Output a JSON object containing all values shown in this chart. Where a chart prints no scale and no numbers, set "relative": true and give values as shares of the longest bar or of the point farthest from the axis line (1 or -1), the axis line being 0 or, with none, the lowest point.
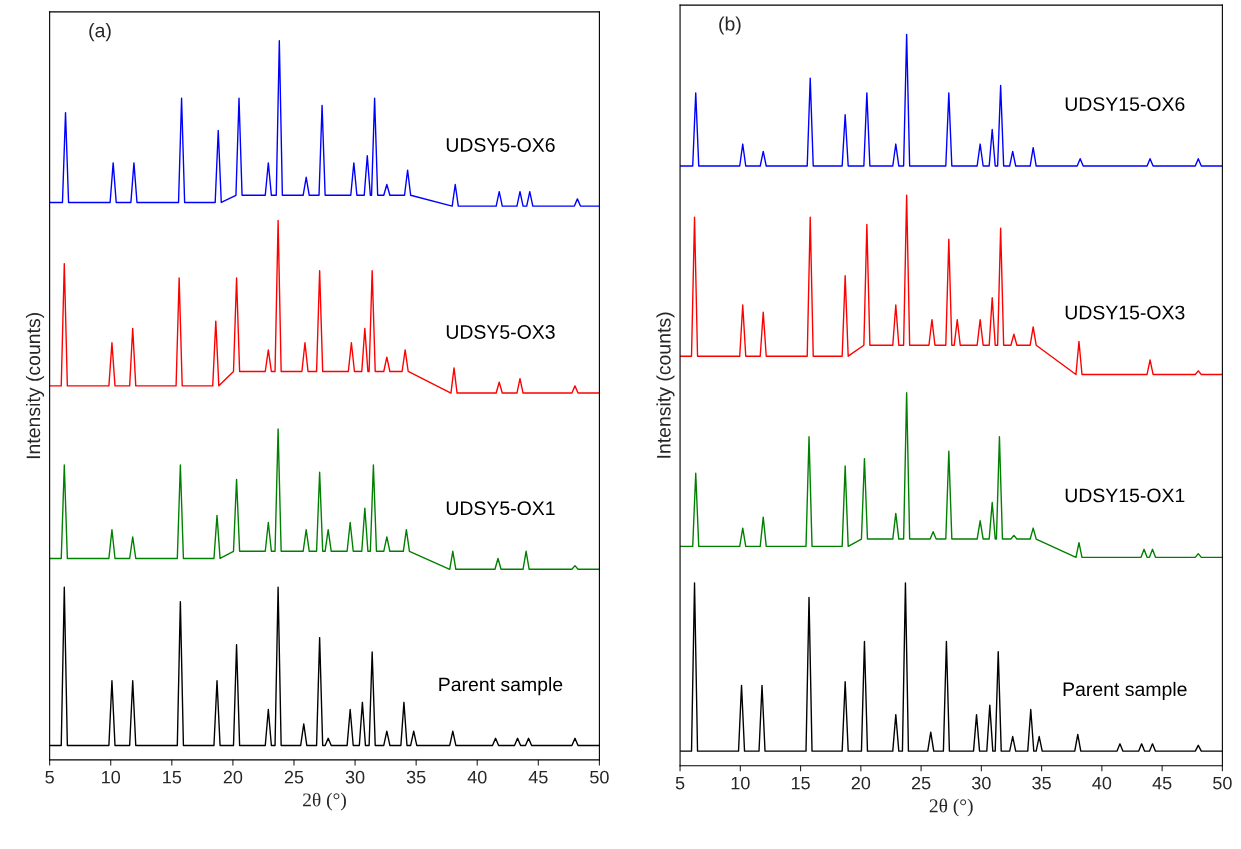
{
  "chart_data": [
    {
      "type": "line",
      "title": "(a)",
      "xlabel": "2θ (°)",
      "ylabel": "Intensity (counts)",
      "relative": true,
      "xlim": [
        5,
        50
      ],
      "xticks": [
        5,
        10,
        15,
        20,
        25,
        30,
        35,
        40,
        45,
        50
      ],
      "legend": false,
      "grid": false,
      "series": [
        {
          "name": "Parent sample",
          "color": "#000000",
          "x": [
            5,
            5.95,
            6.2,
            6.45,
            9.85,
            10.1,
            10.35,
            11.55,
            11.8,
            12.05,
            15.45,
            15.7,
            15.95,
            18.45,
            18.7,
            18.95,
            20.05,
            20.3,
            20.55,
            22.65,
            22.9,
            23.15,
            23.45,
            23.7,
            23.95,
            25.55,
            25.8,
            26.05,
            26.85,
            27.1,
            27.35,
            27.55,
            27.8,
            28.05,
            29.35,
            29.6,
            29.85,
            30.35,
            30.6,
            30.85,
            31.15,
            31.4,
            31.65,
            32.35,
            32.6,
            32.85,
            33.75,
            34.0,
            34.25,
            34.55,
            34.8,
            35.05,
            37.75,
            38.0,
            38.25,
            41.25,
            41.5,
            41.75,
            43.05,
            43.3,
            43.55,
            43.95,
            44.2,
            44.45,
            47.75,
            48.0,
            48.25,
            50
          ],
          "values": [
            0.02,
            0.02,
            0.24,
            0.02,
            0.02,
            0.11,
            0.02,
            0.02,
            0.11,
            0.02,
            0.02,
            0.22,
            0.02,
            0.02,
            0.11,
            0.02,
            0.02,
            0.16,
            0.02,
            0.02,
            0.07,
            0.02,
            0.02,
            0.24,
            0.02,
            0.02,
            0.05,
            0.02,
            0.02,
            0.17,
            0.02,
            0.02,
            0.03,
            0.02,
            0.02,
            0.07,
            0.02,
            0.02,
            0.08,
            0.02,
            0.02,
            0.15,
            0.02,
            0.02,
            0.04,
            0.02,
            0.02,
            0.08,
            0.02,
            0.02,
            0.04,
            0.02,
            0.02,
            0.04,
            0.02,
            0.02,
            0.03,
            0.02,
            0.02,
            0.03,
            0.02,
            0.02,
            0.03,
            0.02,
            0.02,
            0.03,
            0.02,
            0.02
          ]
        },
        {
          "name": "UDSY5-OX1",
          "color": "#008000",
          "x": [
            5,
            5.95,
            6.2,
            6.45,
            9.85,
            10.1,
            10.35,
            11.55,
            11.8,
            12.05,
            15.45,
            15.7,
            15.95,
            18.45,
            18.7,
            18.95,
            20.05,
            20.3,
            20.55,
            22.65,
            22.9,
            23.15,
            23.45,
            23.7,
            23.95,
            25.75,
            26.0,
            26.25,
            26.85,
            27.1,
            27.35,
            27.55,
            27.8,
            28.05,
            29.35,
            29.6,
            29.85,
            30.55,
            30.8,
            31.05,
            31.25,
            31.5,
            31.75,
            32.35,
            32.6,
            32.85,
            33.95,
            34.2,
            34.45,
            37.75,
            38.0,
            38.25,
            41.45,
            41.7,
            41.95,
            43.75,
            44.0,
            44.25,
            47.75,
            48.0,
            48.25,
            50
          ],
          "values": [
            0.28,
            0.28,
            0.41,
            0.28,
            0.28,
            0.32,
            0.28,
            0.28,
            0.31,
            0.28,
            0.28,
            0.41,
            0.28,
            0.28,
            0.34,
            0.28,
            0.29,
            0.39,
            0.29,
            0.29,
            0.33,
            0.29,
            0.29,
            0.46,
            0.29,
            0.29,
            0.32,
            0.29,
            0.29,
            0.4,
            0.29,
            0.29,
            0.32,
            0.29,
            0.29,
            0.33,
            0.29,
            0.29,
            0.35,
            0.29,
            0.29,
            0.41,
            0.29,
            0.29,
            0.31,
            0.29,
            0.29,
            0.32,
            0.29,
            0.265,
            0.29,
            0.265,
            0.265,
            0.28,
            0.265,
            0.265,
            0.29,
            0.265,
            0.265,
            0.27,
            0.265,
            0.265
          ]
        },
        {
          "name": "UDSY5-OX3",
          "color": "#ff0000",
          "x": [
            5,
            5.95,
            6.2,
            6.45,
            9.85,
            10.1,
            10.35,
            11.55,
            11.8,
            12.05,
            15.35,
            15.6,
            15.85,
            18.35,
            18.6,
            18.85,
            20.05,
            20.3,
            20.55,
            22.65,
            22.9,
            23.15,
            23.45,
            23.7,
            23.95,
            25.65,
            25.9,
            26.15,
            26.85,
            27.1,
            27.35,
            29.45,
            29.7,
            29.95,
            30.55,
            30.8,
            31.05,
            31.15,
            31.4,
            31.65,
            32.35,
            32.6,
            32.85,
            33.85,
            34.1,
            34.35,
            37.85,
            38.1,
            38.35,
            41.55,
            41.8,
            42.05,
            43.25,
            43.5,
            43.75,
            47.75,
            48.0,
            48.25,
            50
          ],
          "values": [
            0.52,
            0.52,
            0.69,
            0.52,
            0.52,
            0.58,
            0.52,
            0.52,
            0.6,
            0.52,
            0.52,
            0.67,
            0.52,
            0.52,
            0.61,
            0.52,
            0.54,
            0.67,
            0.54,
            0.54,
            0.57,
            0.54,
            0.54,
            0.75,
            0.54,
            0.54,
            0.58,
            0.54,
            0.54,
            0.68,
            0.54,
            0.54,
            0.58,
            0.54,
            0.54,
            0.6,
            0.54,
            0.54,
            0.68,
            0.54,
            0.54,
            0.56,
            0.54,
            0.54,
            0.57,
            0.54,
            0.51,
            0.545,
            0.51,
            0.51,
            0.525,
            0.51,
            0.51,
            0.53,
            0.51,
            0.51,
            0.52,
            0.51,
            0.51
          ]
        },
        {
          "name": "UDSY5-OX6",
          "color": "#0000ff",
          "x": [
            5,
            6.05,
            6.3,
            6.55,
            9.95,
            10.2,
            10.45,
            11.65,
            11.9,
            12.15,
            15.55,
            15.8,
            16.05,
            18.55,
            18.8,
            19.05,
            20.25,
            20.5,
            20.75,
            22.65,
            22.9,
            23.15,
            23.55,
            23.8,
            24.05,
            25.75,
            26.0,
            26.25,
            27.05,
            27.3,
            27.55,
            29.65,
            29.9,
            30.15,
            30.75,
            31.0,
            31.25,
            31.35,
            31.6,
            31.85,
            32.35,
            32.6,
            32.85,
            34.05,
            34.3,
            34.55,
            37.95,
            38.2,
            38.45,
            41.55,
            41.8,
            42.05,
            43.25,
            43.5,
            43.75,
            44.05,
            44.3,
            44.55,
            47.95,
            48.2,
            48.45,
            50
          ],
          "values": [
            0.775,
            0.775,
            0.9,
            0.775,
            0.775,
            0.83,
            0.775,
            0.775,
            0.83,
            0.775,
            0.775,
            0.92,
            0.775,
            0.775,
            0.875,
            0.775,
            0.785,
            0.92,
            0.785,
            0.785,
            0.83,
            0.785,
            0.785,
            1.0,
            0.785,
            0.785,
            0.81,
            0.785,
            0.785,
            0.91,
            0.785,
            0.785,
            0.83,
            0.785,
            0.785,
            0.84,
            0.785,
            0.785,
            0.92,
            0.785,
            0.785,
            0.8,
            0.785,
            0.785,
            0.82,
            0.785,
            0.77,
            0.8,
            0.77,
            0.77,
            0.79,
            0.77,
            0.77,
            0.79,
            0.77,
            0.77,
            0.79,
            0.77,
            0.77,
            0.78,
            0.77,
            0.77
          ]
        }
      ]
    },
    {
      "type": "line",
      "title": "(b)",
      "xlabel": "2θ (°)",
      "ylabel": "Intensity (counts)",
      "relative": true,
      "xlim": [
        5,
        50
      ],
      "xticks": [
        5,
        10,
        15,
        20,
        25,
        30,
        35,
        40,
        45,
        50
      ],
      "legend": false,
      "grid": false,
      "series": [
        {
          "name": "Parent sample",
          "color": "#000000",
          "x": [
            5,
            5.95,
            6.2,
            6.45,
            9.85,
            10.1,
            10.35,
            11.55,
            11.8,
            12.05,
            15.45,
            15.7,
            15.95,
            18.45,
            18.7,
            18.95,
            20.05,
            20.3,
            20.55,
            22.65,
            22.9,
            23.15,
            23.45,
            23.7,
            23.95,
            25.55,
            25.8,
            26.05,
            26.85,
            27.1,
            27.35,
            29.35,
            29.6,
            29.85,
            30.45,
            30.7,
            30.95,
            31.15,
            31.4,
            31.65,
            32.35,
            32.6,
            32.85,
            33.85,
            34.1,
            34.35,
            34.55,
            34.8,
            35.05,
            37.75,
            38.0,
            38.25,
            41.25,
            41.5,
            41.75,
            43.05,
            43.3,
            43.55,
            43.95,
            44.2,
            44.45,
            47.75,
            48.0,
            48.25,
            50
          ],
          "values": [
            0.02,
            0.02,
            0.25,
            0.02,
            0.02,
            0.11,
            0.02,
            0.02,
            0.11,
            0.02,
            0.02,
            0.23,
            0.02,
            0.02,
            0.115,
            0.02,
            0.02,
            0.17,
            0.02,
            0.02,
            0.07,
            0.02,
            0.02,
            0.25,
            0.02,
            0.02,
            0.046,
            0.02,
            0.02,
            0.17,
            0.02,
            0.02,
            0.07,
            0.02,
            0.02,
            0.083,
            0.02,
            0.02,
            0.156,
            0.02,
            0.02,
            0.04,
            0.02,
            0.02,
            0.077,
            0.02,
            0.02,
            0.04,
            0.02,
            0.02,
            0.043,
            0.02,
            0.02,
            0.03,
            0.02,
            0.02,
            0.03,
            0.02,
            0.02,
            0.03,
            0.02,
            0.02,
            0.028,
            0.02,
            0.02
          ]
        },
        {
          "name": "UDSY15-OX1",
          "color": "#008000",
          "x": [
            5,
            6.05,
            6.3,
            6.55,
            9.95,
            10.2,
            10.45,
            11.65,
            11.9,
            12.15,
            15.45,
            15.7,
            15.95,
            18.45,
            18.7,
            18.95,
            20.05,
            20.3,
            20.55,
            22.65,
            22.9,
            23.15,
            23.55,
            23.8,
            24.05,
            25.75,
            26.0,
            26.25,
            27.05,
            27.3,
            27.55,
            29.65,
            29.9,
            30.15,
            30.65,
            30.9,
            31.15,
            31.25,
            31.5,
            31.75,
            32.45,
            32.7,
            32.95,
            34.05,
            34.3,
            34.55,
            37.85,
            38.1,
            38.35,
            43.25,
            43.5,
            43.75,
            43.95,
            44.2,
            44.45,
            47.75,
            48.0,
            48.25,
            50
          ],
          "values": [
            0.3,
            0.3,
            0.4,
            0.3,
            0.3,
            0.325,
            0.3,
            0.3,
            0.34,
            0.3,
            0.3,
            0.45,
            0.3,
            0.3,
            0.41,
            0.3,
            0.31,
            0.42,
            0.31,
            0.31,
            0.345,
            0.31,
            0.31,
            0.51,
            0.31,
            0.31,
            0.32,
            0.31,
            0.31,
            0.43,
            0.31,
            0.31,
            0.335,
            0.31,
            0.31,
            0.36,
            0.31,
            0.31,
            0.45,
            0.31,
            0.31,
            0.315,
            0.31,
            0.31,
            0.325,
            0.31,
            0.285,
            0.305,
            0.285,
            0.285,
            0.296,
            0.285,
            0.285,
            0.296,
            0.285,
            0.285,
            0.29,
            0.285,
            0.285
          ]
        },
        {
          "name": "UDSY15-OX3",
          "color": "#ff0000",
          "x": [
            5,
            5.95,
            6.2,
            6.45,
            9.95,
            10.2,
            10.45,
            11.65,
            11.9,
            12.15,
            15.55,
            15.8,
            16.05,
            18.45,
            18.7,
            18.95,
            20.25,
            20.5,
            20.75,
            22.65,
            22.9,
            23.15,
            23.55,
            23.8,
            24.05,
            25.65,
            25.9,
            26.15,
            27.05,
            27.3,
            27.55,
            27.75,
            28.0,
            28.25,
            29.65,
            29.9,
            30.15,
            30.65,
            30.9,
            31.15,
            31.35,
            31.6,
            31.85,
            32.45,
            32.7,
            32.95,
            34.05,
            34.3,
            34.55,
            37.85,
            38.1,
            38.35,
            43.75,
            44.0,
            44.25,
            47.75,
            48.0,
            48.25,
            50
          ],
          "values": [
            0.56,
            0.56,
            0.75,
            0.56,
            0.56,
            0.63,
            0.56,
            0.56,
            0.62,
            0.56,
            0.56,
            0.75,
            0.56,
            0.56,
            0.67,
            0.56,
            0.575,
            0.74,
            0.575,
            0.575,
            0.63,
            0.575,
            0.575,
            0.78,
            0.575,
            0.575,
            0.61,
            0.575,
            0.575,
            0.72,
            0.575,
            0.575,
            0.61,
            0.575,
            0.575,
            0.61,
            0.575,
            0.575,
            0.64,
            0.575,
            0.575,
            0.735,
            0.575,
            0.575,
            0.59,
            0.575,
            0.575,
            0.6,
            0.575,
            0.535,
            0.58,
            0.535,
            0.535,
            0.555,
            0.535,
            0.535,
            0.54,
            0.535,
            0.535
          ]
        },
        {
          "name": "UDSY15-OX6",
          "color": "#0000ff",
          "x": [
            5,
            6.05,
            6.3,
            6.55,
            9.95,
            10.2,
            10.45,
            11.65,
            11.9,
            12.15,
            15.55,
            15.8,
            16.05,
            18.45,
            18.7,
            18.95,
            20.25,
            20.5,
            20.75,
            22.65,
            22.9,
            23.15,
            23.55,
            23.8,
            24.05,
            27.05,
            27.3,
            27.55,
            29.65,
            29.9,
            30.15,
            30.65,
            30.9,
            31.15,
            31.35,
            31.6,
            31.85,
            32.35,
            32.6,
            32.85,
            34.05,
            34.3,
            34.55,
            37.95,
            38.2,
            38.45,
            43.75,
            44.0,
            44.25,
            47.75,
            48.0,
            48.25,
            50
          ],
          "values": [
            0.82,
            0.82,
            0.92,
            0.82,
            0.82,
            0.85,
            0.82,
            0.82,
            0.84,
            0.82,
            0.82,
            0.94,
            0.82,
            0.82,
            0.89,
            0.82,
            0.82,
            0.92,
            0.82,
            0.82,
            0.85,
            0.82,
            0.82,
            1.0,
            0.82,
            0.82,
            0.92,
            0.82,
            0.82,
            0.85,
            0.82,
            0.82,
            0.87,
            0.82,
            0.82,
            0.93,
            0.82,
            0.82,
            0.84,
            0.82,
            0.82,
            0.845,
            0.82,
            0.82,
            0.83,
            0.82,
            0.82,
            0.83,
            0.82,
            0.82,
            0.83,
            0.82,
            0.82
          ]
        }
      ]
    }
  ]
}
